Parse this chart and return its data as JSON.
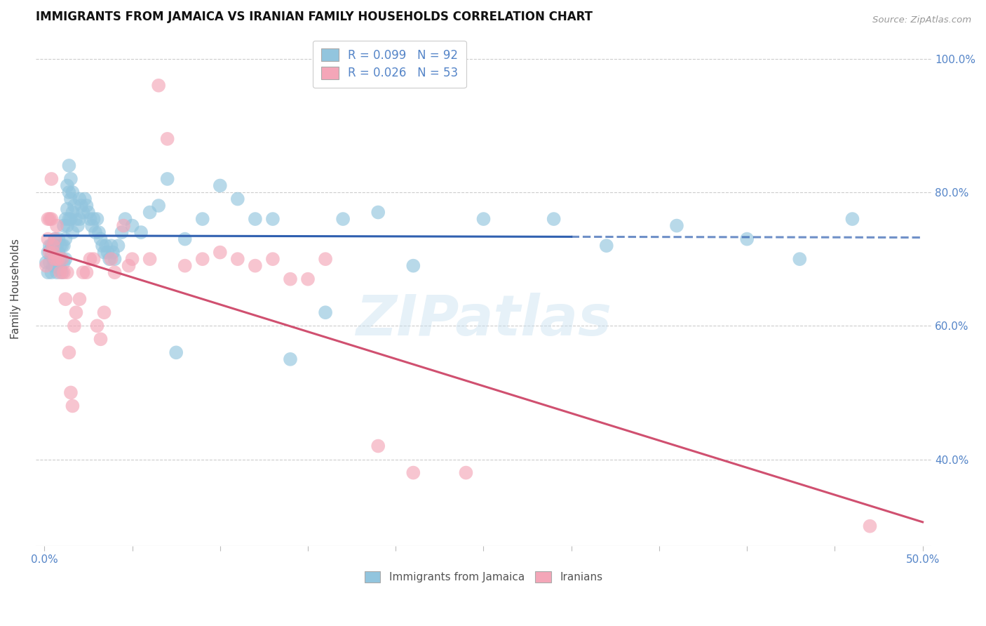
{
  "title": "IMMIGRANTS FROM JAMAICA VS IRANIAN FAMILY HOUSEHOLDS CORRELATION CHART",
  "source_text": "Source: ZipAtlas.com",
  "xlabel": "",
  "ylabel": "Family Households",
  "xlim": [
    -0.005,
    0.505
  ],
  "ylim": [
    0.27,
    1.04
  ],
  "xticks": [
    0.0,
    0.05,
    0.1,
    0.15,
    0.2,
    0.25,
    0.3,
    0.35,
    0.4,
    0.45,
    0.5
  ],
  "xticklabels": [
    "0.0%",
    "",
    "",
    "",
    "",
    "",
    "",
    "",
    "",
    "",
    "50.0%"
  ],
  "yticks": [
    0.4,
    0.6,
    0.8,
    1.0
  ],
  "yticklabels": [
    "40.0%",
    "60.0%",
    "80.0%",
    "100.0%"
  ],
  "blue_color": "#92c5de",
  "pink_color": "#f4a6b8",
  "blue_line_color": "#3060b0",
  "pink_line_color": "#d05070",
  "watermark": "ZIPatlas",
  "background_color": "#ffffff",
  "grid_color": "#cccccc",
  "tick_color": "#5585c8",
  "blue_scatter": [
    [
      0.001,
      0.695
    ],
    [
      0.002,
      0.71
    ],
    [
      0.002,
      0.68
    ],
    [
      0.003,
      0.72
    ],
    [
      0.003,
      0.695
    ],
    [
      0.004,
      0.705
    ],
    [
      0.004,
      0.68
    ],
    [
      0.004,
      0.72
    ],
    [
      0.005,
      0.7
    ],
    [
      0.005,
      0.69
    ],
    [
      0.005,
      0.72
    ],
    [
      0.006,
      0.71
    ],
    [
      0.006,
      0.69
    ],
    [
      0.006,
      0.73
    ],
    [
      0.007,
      0.72
    ],
    [
      0.007,
      0.7
    ],
    [
      0.007,
      0.68
    ],
    [
      0.008,
      0.73
    ],
    [
      0.008,
      0.71
    ],
    [
      0.008,
      0.695
    ],
    [
      0.009,
      0.72
    ],
    [
      0.009,
      0.7
    ],
    [
      0.009,
      0.685
    ],
    [
      0.01,
      0.72
    ],
    [
      0.01,
      0.7
    ],
    [
      0.01,
      0.68
    ],
    [
      0.011,
      0.75
    ],
    [
      0.011,
      0.72
    ],
    [
      0.011,
      0.695
    ],
    [
      0.012,
      0.76
    ],
    [
      0.012,
      0.73
    ],
    [
      0.012,
      0.7
    ],
    [
      0.013,
      0.81
    ],
    [
      0.013,
      0.775
    ],
    [
      0.013,
      0.75
    ],
    [
      0.014,
      0.84
    ],
    [
      0.014,
      0.8
    ],
    [
      0.014,
      0.76
    ],
    [
      0.015,
      0.82
    ],
    [
      0.015,
      0.79
    ],
    [
      0.015,
      0.76
    ],
    [
      0.016,
      0.8
    ],
    [
      0.016,
      0.77
    ],
    [
      0.016,
      0.74
    ],
    [
      0.017,
      0.78
    ],
    [
      0.018,
      0.76
    ],
    [
      0.019,
      0.75
    ],
    [
      0.02,
      0.79
    ],
    [
      0.02,
      0.76
    ],
    [
      0.021,
      0.78
    ],
    [
      0.022,
      0.77
    ],
    [
      0.023,
      0.79
    ],
    [
      0.024,
      0.78
    ],
    [
      0.025,
      0.77
    ],
    [
      0.026,
      0.76
    ],
    [
      0.027,
      0.75
    ],
    [
      0.028,
      0.76
    ],
    [
      0.029,
      0.74
    ],
    [
      0.03,
      0.76
    ],
    [
      0.031,
      0.74
    ],
    [
      0.032,
      0.73
    ],
    [
      0.033,
      0.72
    ],
    [
      0.034,
      0.71
    ],
    [
      0.035,
      0.72
    ],
    [
      0.036,
      0.71
    ],
    [
      0.037,
      0.7
    ],
    [
      0.038,
      0.72
    ],
    [
      0.039,
      0.71
    ],
    [
      0.04,
      0.7
    ],
    [
      0.042,
      0.72
    ],
    [
      0.044,
      0.74
    ],
    [
      0.046,
      0.76
    ],
    [
      0.05,
      0.75
    ],
    [
      0.055,
      0.74
    ],
    [
      0.06,
      0.77
    ],
    [
      0.065,
      0.78
    ],
    [
      0.07,
      0.82
    ],
    [
      0.075,
      0.56
    ],
    [
      0.08,
      0.73
    ],
    [
      0.09,
      0.76
    ],
    [
      0.1,
      0.81
    ],
    [
      0.11,
      0.79
    ],
    [
      0.12,
      0.76
    ],
    [
      0.13,
      0.76
    ],
    [
      0.14,
      0.55
    ],
    [
      0.16,
      0.62
    ],
    [
      0.17,
      0.76
    ],
    [
      0.19,
      0.77
    ],
    [
      0.21,
      0.69
    ],
    [
      0.25,
      0.76
    ],
    [
      0.29,
      0.76
    ],
    [
      0.32,
      0.72
    ],
    [
      0.36,
      0.75
    ],
    [
      0.4,
      0.73
    ],
    [
      0.43,
      0.7
    ],
    [
      0.46,
      0.76
    ]
  ],
  "pink_scatter": [
    [
      0.001,
      0.69
    ],
    [
      0.002,
      0.73
    ],
    [
      0.002,
      0.76
    ],
    [
      0.003,
      0.76
    ],
    [
      0.003,
      0.71
    ],
    [
      0.004,
      0.82
    ],
    [
      0.004,
      0.76
    ],
    [
      0.005,
      0.72
    ],
    [
      0.005,
      0.71
    ],
    [
      0.006,
      0.73
    ],
    [
      0.006,
      0.7
    ],
    [
      0.007,
      0.75
    ],
    [
      0.007,
      0.7
    ],
    [
      0.008,
      0.7
    ],
    [
      0.009,
      0.68
    ],
    [
      0.01,
      0.7
    ],
    [
      0.011,
      0.68
    ],
    [
      0.012,
      0.64
    ],
    [
      0.013,
      0.68
    ],
    [
      0.014,
      0.56
    ],
    [
      0.015,
      0.5
    ],
    [
      0.016,
      0.48
    ],
    [
      0.017,
      0.6
    ],
    [
      0.018,
      0.62
    ],
    [
      0.02,
      0.64
    ],
    [
      0.022,
      0.68
    ],
    [
      0.024,
      0.68
    ],
    [
      0.026,
      0.7
    ],
    [
      0.028,
      0.7
    ],
    [
      0.03,
      0.6
    ],
    [
      0.032,
      0.58
    ],
    [
      0.034,
      0.62
    ],
    [
      0.038,
      0.7
    ],
    [
      0.04,
      0.68
    ],
    [
      0.045,
      0.75
    ],
    [
      0.048,
      0.69
    ],
    [
      0.05,
      0.7
    ],
    [
      0.06,
      0.7
    ],
    [
      0.065,
      0.96
    ],
    [
      0.07,
      0.88
    ],
    [
      0.08,
      0.69
    ],
    [
      0.09,
      0.7
    ],
    [
      0.1,
      0.71
    ],
    [
      0.11,
      0.7
    ],
    [
      0.12,
      0.69
    ],
    [
      0.13,
      0.7
    ],
    [
      0.14,
      0.67
    ],
    [
      0.15,
      0.67
    ],
    [
      0.16,
      0.7
    ],
    [
      0.19,
      0.42
    ],
    [
      0.21,
      0.38
    ],
    [
      0.24,
      0.38
    ],
    [
      0.47,
      0.3
    ]
  ]
}
